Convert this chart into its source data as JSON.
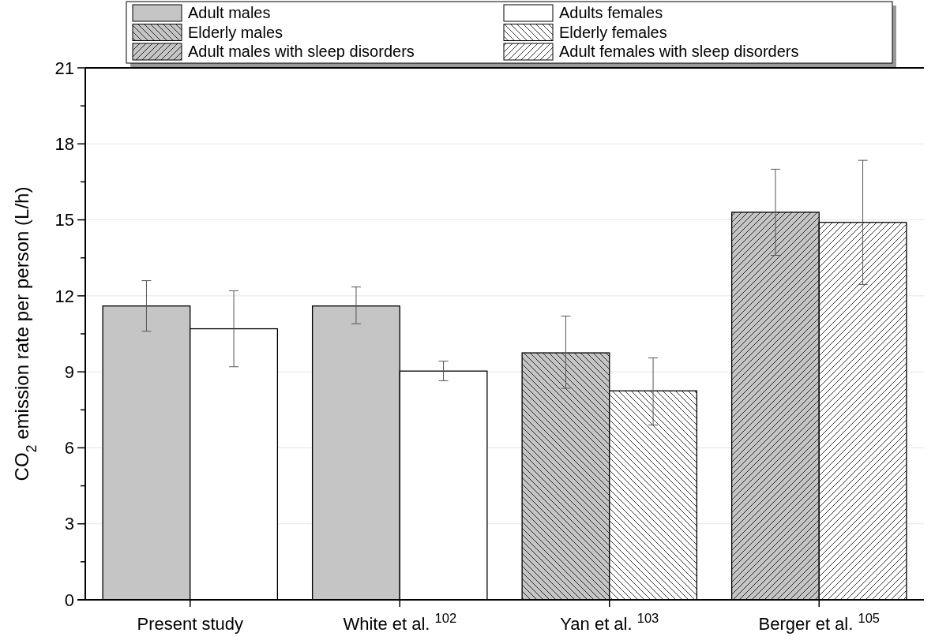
{
  "chart_data": {
    "type": "bar",
    "ylabel": "CO$_{2}$ emission rate per person (L/h)",
    "categories": [
      "Present study",
      "White et al. $^{102}$",
      "Yan et al. $^{103}$",
      "Berger et al. $^{105}$"
    ],
    "series": [
      {
        "name": "Adult males",
        "color": "#c5c5c5",
        "values": [
          11.6,
          11.6,
          null,
          null
        ],
        "errors": [
          [
            10.6,
            12.6
          ],
          [
            10.9,
            12.35
          ],
          null,
          null
        ]
      },
      {
        "name": "Adults females",
        "color": "#ffffff",
        "values": [
          10.7,
          9.03,
          null,
          null
        ],
        "errors": [
          [
            9.2,
            12.2
          ],
          [
            8.65,
            9.42
          ],
          null,
          null
        ]
      },
      {
        "name": "Elderly males",
        "color": "#c5c5c5",
        "values": [
          null,
          null,
          9.75,
          null
        ],
        "errors": [
          null,
          null,
          [
            8.35,
            11.2
          ],
          null
        ]
      },
      {
        "name": "Elderly females",
        "color": "#ffffff",
        "values": [
          null,
          null,
          8.25,
          null
        ],
        "errors": [
          null,
          null,
          [
            6.9,
            9.55
          ],
          null
        ]
      },
      {
        "name": "Adult males with sleep disorders",
        "color": "#c5c5c5",
        "values": [
          null,
          null,
          null,
          15.3
        ],
        "errors": [
          null,
          null,
          null,
          [
            13.6,
            17.0
          ]
        ]
      },
      {
        "name": "Adult females with sleep disorders",
        "color": "#ffffff",
        "values": [
          null,
          null,
          null,
          14.9
        ],
        "errors": [
          null,
          null,
          null,
          [
            12.45,
            17.35
          ]
        ]
      }
    ],
    "ylim": [
      0,
      21
    ],
    "yticks": [
      0,
      {
        "value": 1.5,
        "label": null
      },
      3,
      {
        "value": 4.5,
        "label": null
      },
      6,
      {
        "value": 7.5,
        "label": null
      },
      9,
      {
        "value": 10.5,
        "label": null
      },
      12,
      {
        "value": 13.5,
        "label": null
      },
      15,
      {
        "value": 16.5,
        "label": null
      },
      18,
      {
        "value": 19.5,
        "label": null
      },
      21
    ],
    "grid": "y",
    "legend": "top"
  }
}
